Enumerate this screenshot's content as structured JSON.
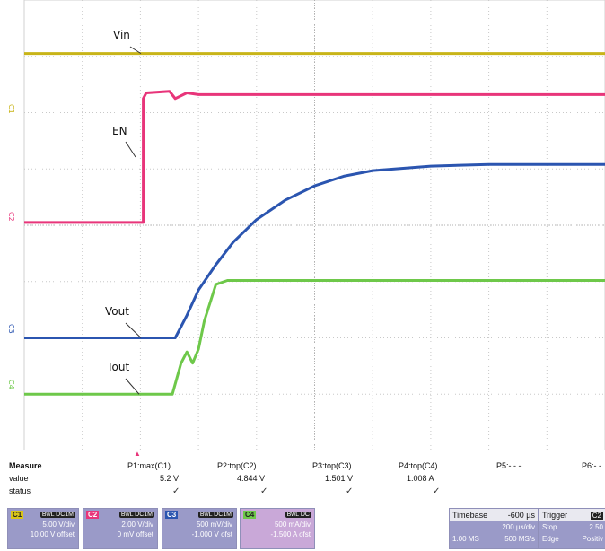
{
  "chart_data": {
    "type": "line",
    "title": "",
    "xlabel": "",
    "ylabel": "",
    "grid": true,
    "x_divisions": 10,
    "y_divisions": 8,
    "series": [
      {
        "name": "Vin",
        "color": "#c8b418",
        "level_div": 7.05,
        "points": [
          [
            0,
            7.05
          ],
          [
            10,
            7.05
          ]
        ]
      },
      {
        "name": "EN",
        "color": "#e8357a",
        "level_div": 4.05,
        "points": [
          [
            0,
            4.05
          ],
          [
            2.05,
            4.05
          ],
          [
            2.05,
            6.25
          ],
          [
            2.1,
            6.35
          ],
          [
            2.5,
            6.38
          ],
          [
            2.6,
            6.25
          ],
          [
            2.8,
            6.35
          ],
          [
            3.0,
            6.32
          ],
          [
            10,
            6.32
          ]
        ]
      },
      {
        "name": "Vout",
        "color": "#2b55b0",
        "level_div": 2.0,
        "points": [
          [
            0,
            2.0
          ],
          [
            2.6,
            2.0
          ],
          [
            2.8,
            2.4
          ],
          [
            3.0,
            2.85
          ],
          [
            3.3,
            3.3
          ],
          [
            3.6,
            3.7
          ],
          [
            4.0,
            4.1
          ],
          [
            4.5,
            4.45
          ],
          [
            5.0,
            4.7
          ],
          [
            5.5,
            4.87
          ],
          [
            6.0,
            4.97
          ],
          [
            7.0,
            5.05
          ],
          [
            8.0,
            5.08
          ],
          [
            10,
            5.08
          ]
        ]
      },
      {
        "name": "Iout",
        "color": "#6ec84a",
        "level_div": 1.0,
        "points": [
          [
            0,
            1.0
          ],
          [
            2.55,
            1.0
          ],
          [
            2.7,
            1.55
          ],
          [
            2.8,
            1.75
          ],
          [
            2.9,
            1.55
          ],
          [
            3.0,
            1.8
          ],
          [
            3.1,
            2.3
          ],
          [
            3.3,
            2.95
          ],
          [
            3.5,
            3.02
          ],
          [
            10,
            3.02
          ]
        ]
      }
    ],
    "labels": [
      "Vin",
      "EN",
      "Vout",
      "Iout"
    ]
  },
  "channel_markers": [
    "C1",
    "C2",
    "C3",
    "C4"
  ],
  "trigger_marker": "▲",
  "measure": {
    "title": "Measure",
    "rows": [
      "value",
      "status"
    ],
    "columns": [
      {
        "param": "P1:max(C1)",
        "value": "5.2 V",
        "status": "✓"
      },
      {
        "param": "P2:top(C2)",
        "value": "4.844 V",
        "status": "✓"
      },
      {
        "param": "P3:top(C3)",
        "value": "1.501 V",
        "status": "✓"
      },
      {
        "param": "P4:top(C4)",
        "value": "1.008 A",
        "status": "✓"
      },
      {
        "param": "P5:- - -",
        "value": "",
        "status": ""
      },
      {
        "param": "P6:- -",
        "value": "",
        "status": ""
      }
    ]
  },
  "channels": [
    {
      "tag": "C1",
      "mode": "BwL DC1M",
      "tag_color": "#d8c418",
      "line1": "5.00 V/div",
      "line2": "10.00 V offset"
    },
    {
      "tag": "C2",
      "mode": "BwL DC1M",
      "tag_color": "#e8357a",
      "line1": "2.00 V/div",
      "line2": "0 mV offset"
    },
    {
      "tag": "C3",
      "mode": "BwL DC1M",
      "tag_color": "#2b55b0",
      "line1": "500 mV/div",
      "line2": "-1.000 V ofst"
    },
    {
      "tag": "C4",
      "mode": "BwL DC",
      "tag_color": "#6ec84a",
      "line1": "500 mA/div",
      "line2": "-1.500 A ofst"
    }
  ],
  "timebase": {
    "label": "Timebase",
    "delay": "-600 µs",
    "div": "200 µs/div",
    "samples": "1.00 MS",
    "rate": "500 MS/s"
  },
  "trigger": {
    "label": "Trigger",
    "channel": "C2",
    "mode": "Stop",
    "level": "2.50",
    "type": "Edge",
    "slope": "Positiv"
  }
}
